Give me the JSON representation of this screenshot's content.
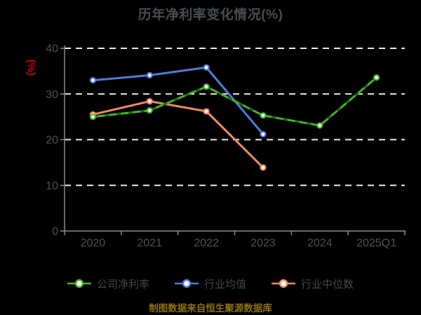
{
  "caption": "制图数据来自恒生聚源数据库",
  "colors": {
    "background": "#000000",
    "title_text": "#484c4f",
    "axis_line": "#8a8a8a",
    "tick_text": "#4d5154",
    "legend_text": "#43474a",
    "gridline": "#ececec",
    "ylabel_text": "#cc0000",
    "caption_text": "#8e7112",
    "marker_fill": "#ffffff"
  },
  "chart_data": {
    "type": "line",
    "title": "历年净利率变化情况(%)",
    "ylabel": "(%)",
    "xlabel": "",
    "categories": [
      "2020",
      "2021",
      "2022",
      "2023",
      "2024",
      "2025Q1"
    ],
    "y_ticks": [
      0,
      10,
      20,
      30,
      40
    ],
    "ylim": [
      0,
      40
    ],
    "grid": "horizontal-dashed",
    "legend_position": "bottom",
    "series": [
      {
        "name": "公司净利率",
        "color": "#47b42a",
        "dash_overlay_color": "#17700d",
        "values": [
          25.0,
          26.4,
          31.6,
          25.3,
          23.1,
          33.6
        ]
      },
      {
        "name": "行业均值",
        "color": "#4d7dda",
        "values": [
          33.0,
          34.1,
          35.8,
          21.2,
          null,
          null
        ]
      },
      {
        "name": "行业中位数",
        "color": "#ef8b5e",
        "values": [
          25.5,
          28.4,
          26.2,
          13.9,
          null,
          null
        ]
      }
    ]
  }
}
